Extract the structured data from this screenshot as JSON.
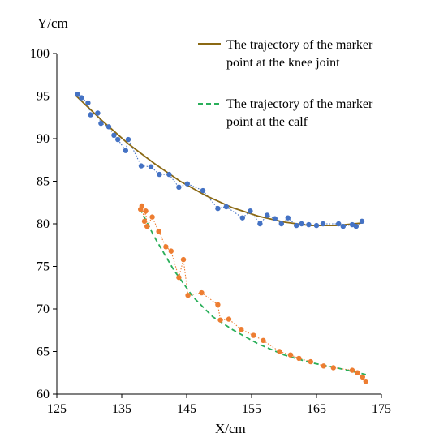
{
  "chart_data": {
    "type": "scatter",
    "xlabel": "X/cm",
    "ylabel": "Y/cm",
    "xlim": [
      125,
      175
    ],
    "ylim": [
      60,
      100
    ],
    "xticks": [
      "125",
      "135",
      "145",
      "155",
      "165",
      "175"
    ],
    "yticks": [
      "60",
      "65",
      "70",
      "75",
      "80",
      "85",
      "90",
      "95",
      "100"
    ],
    "xtick_values": [
      125,
      135,
      145,
      155,
      165,
      175
    ],
    "ytick_values": [
      60,
      65,
      70,
      75,
      80,
      85,
      90,
      95,
      100
    ],
    "grid": false,
    "legend_position": "top-right",
    "legend": [
      {
        "label_line1": "The trajectory of the marker",
        "label_line2": "point at the knee joint",
        "style": "solid",
        "color": "#8B6914"
      },
      {
        "label_line1": "The trajectory of the marker",
        "label_line2": "point at the calf",
        "style": "dashed",
        "color": "#2AAF5A"
      }
    ],
    "series": [
      {
        "color": "#4472C4",
        "marker": "circle",
        "connector": "dotted",
        "x": [
          128.2,
          128.8,
          129.8,
          130.2,
          131.3,
          131.8,
          133.0,
          133.8,
          134.4,
          135.6,
          136.0,
          138.0,
          139.5,
          140.8,
          142.3,
          143.8,
          145.1,
          147.5,
          149.8,
          151.1,
          153.6,
          154.8,
          156.3,
          157.4,
          158.6,
          159.6,
          160.6,
          161.9,
          162.7,
          163.8,
          165.0,
          166.0,
          168.4,
          169.1,
          170.5,
          171.1,
          172.0
        ],
        "y": [
          95.2,
          94.8,
          94.2,
          92.8,
          93.0,
          91.8,
          91.4,
          90.4,
          89.9,
          88.6,
          89.9,
          86.8,
          86.7,
          85.8,
          85.8,
          84.3,
          84.7,
          83.9,
          81.8,
          82.0,
          80.7,
          81.5,
          80.0,
          81.0,
          80.6,
          80.0,
          80.7,
          79.8,
          80.0,
          79.9,
          79.8,
          80.0,
          80.0,
          79.7,
          79.9,
          79.7,
          80.3
        ]
      },
      {
        "color": "#ED7D31",
        "marker": "circle",
        "connector": "dotted",
        "x": [
          137.9,
          138.1,
          138.5,
          138.7,
          138.9,
          139.7,
          140.7,
          141.8,
          142.6,
          143.8,
          144.5,
          145.2,
          147.3,
          149.8,
          150.2,
          151.5,
          153.4,
          155.3,
          156.8,
          159.3,
          161.0,
          162.3,
          164.1,
          166.1,
          167.6,
          170.5,
          171.3,
          172.1,
          172.6
        ],
        "y": [
          81.7,
          82.1,
          80.3,
          81.5,
          79.7,
          80.8,
          79.1,
          77.3,
          76.8,
          73.7,
          75.8,
          71.6,
          71.9,
          70.5,
          68.7,
          68.8,
          67.6,
          66.9,
          66.3,
          65.0,
          64.6,
          64.2,
          63.8,
          63.3,
          63.1,
          62.8,
          62.5,
          62.0,
          61.5
        ]
      }
    ],
    "trendlines": [
      {
        "color": "#8B6914",
        "style": "solid",
        "x": [
          128,
          132,
          136,
          140,
          144,
          148,
          152,
          156,
          160,
          164,
          168,
          172
        ],
        "y": [
          95.0,
          92.1,
          89.4,
          87.1,
          85.0,
          83.3,
          81.9,
          80.9,
          80.2,
          79.8,
          79.8,
          80.1
        ]
      },
      {
        "color": "#2AAF5A",
        "style": "dashed",
        "x": [
          137.8,
          140,
          143,
          146,
          149,
          152,
          156,
          160,
          164,
          168,
          172.6
        ],
        "y": [
          81.8,
          78.5,
          74.6,
          71.4,
          69.1,
          67.6,
          65.9,
          64.6,
          63.7,
          63.1,
          62.3
        ]
      }
    ]
  }
}
